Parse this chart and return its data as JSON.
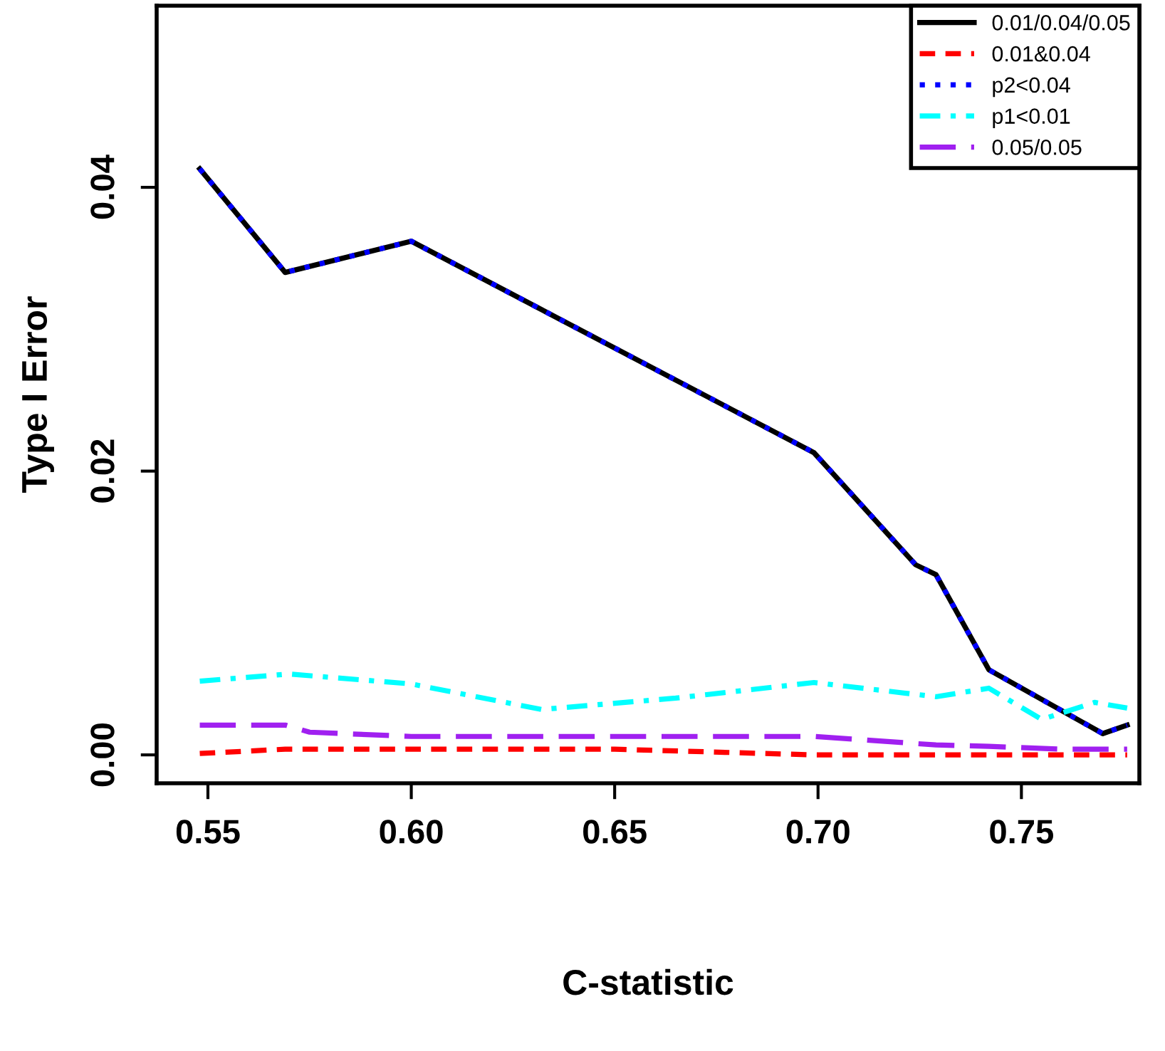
{
  "chart_data": {
    "type": "line",
    "xlabel": "C-statistic",
    "ylabel": "Type I Error",
    "xlim": [
      0.5374,
      0.779
    ],
    "ylim": [
      -0.002,
      0.0528
    ],
    "xticks": [
      {
        "value": 0.55,
        "label": "0.55"
      },
      {
        "value": 0.6,
        "label": "0.60"
      },
      {
        "value": 0.65,
        "label": "0.65"
      },
      {
        "value": 0.7,
        "label": "0.70"
      },
      {
        "value": 0.75,
        "label": "0.75"
      }
    ],
    "yticks": [
      {
        "value": 0,
        "label": "0.00"
      },
      {
        "value": 0.02,
        "label": "0.02"
      },
      {
        "value": 0.04,
        "label": "0.04"
      }
    ],
    "grid": false,
    "legend": "top right",
    "series": [
      {
        "name": "0.01/0.04/0.05",
        "color": "#000000",
        "line_style": "solid",
        "x": [
          0.548,
          0.569,
          0.6,
          0.699,
          0.724,
          0.729,
          0.742,
          0.77,
          0.776
        ],
        "values": [
          0.0413,
          0.034,
          0.0362,
          0.0213,
          0.0134,
          0.0127,
          0.006,
          0.0015,
          0.0021
        ]
      },
      {
        "name": "0.01&0.04",
        "color": "#ff0000",
        "line_style": "dashed",
        "x": [
          0.548,
          0.569,
          0.6,
          0.65,
          0.699,
          0.73,
          0.776
        ],
        "values": [
          0.0001,
          0.0004,
          0.0004,
          0.0004,
          0.0,
          0.0,
          0.0
        ]
      },
      {
        "name": "p2<0.04",
        "color": "#0000ff",
        "line_style": "dotted",
        "x": [
          0.548,
          0.569,
          0.6,
          0.699,
          0.724,
          0.729,
          0.742,
          0.77,
          0.776
        ],
        "values": [
          0.0413,
          0.034,
          0.0362,
          0.0213,
          0.0134,
          0.0127,
          0.006,
          0.0015,
          0.0021
        ]
      },
      {
        "name": "p1<0.01",
        "color": "#00ffff",
        "line_style": "dashdot",
        "x": [
          0.548,
          0.57,
          0.6,
          0.632,
          0.665,
          0.699,
          0.729,
          0.742,
          0.755,
          0.768,
          0.776
        ],
        "values": [
          0.0052,
          0.0057,
          0.005,
          0.0032,
          0.004,
          0.0051,
          0.0041,
          0.0047,
          0.0025,
          0.0037,
          0.0033
        ]
      },
      {
        "name": "0.05/0.05",
        "color": "#a020f0",
        "line_style": "longdash",
        "x": [
          0.548,
          0.569,
          0.575,
          0.6,
          0.699,
          0.729,
          0.742,
          0.76,
          0.776
        ],
        "values": [
          0.0021,
          0.0021,
          0.0016,
          0.0013,
          0.0013,
          0.0007,
          0.0006,
          0.0004,
          0.0004
        ]
      }
    ]
  }
}
